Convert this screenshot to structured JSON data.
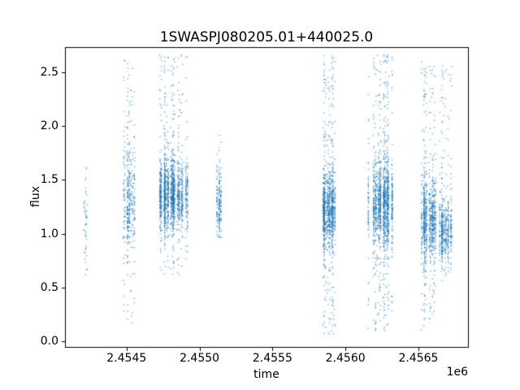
{
  "chart_data": {
    "type": "scatter",
    "title": "1SWASPJ080205.01+440025.0",
    "xlabel": "time",
    "ylabel": "flux",
    "x_offset_text": "1e6",
    "xlim": [
      2454078,
      2456840
    ],
    "ylim": [
      -0.05,
      2.73
    ],
    "xticks": [
      2454500,
      2455000,
      2455500,
      2456000,
      2456500
    ],
    "xtick_labels": [
      "2.4545",
      "2.4550",
      "2.4555",
      "2.4560",
      "2.4565"
    ],
    "yticks": [
      0.0,
      0.5,
      1.0,
      1.5,
      2.0,
      2.5
    ],
    "ytick_labels": [
      "0.0",
      "0.5",
      "1.0",
      "1.5",
      "2.0",
      "2.5"
    ],
    "grid": false,
    "legend": null,
    "marker_color": "#1f77b4",
    "marker_alpha": 0.6,
    "marker_size": 1.4,
    "colors": {
      "background": "#ffffff",
      "spine": "#000000",
      "text": "#000000"
    },
    "description": "Light-curve scatter: nightly vertical streaks of flux measurements grouped into observing seasons",
    "clusters": [
      {
        "t_center": 2454217,
        "t_halfwidth": 14,
        "nights": 5,
        "n_points": 50,
        "flux_mean": 1.15,
        "flux_sd": 0.26,
        "tail_frac": 0.1,
        "flux_min": 0.6,
        "flux_max": 1.66
      },
      {
        "t_center": 2454501,
        "t_halfwidth": 55,
        "nights": 12,
        "n_points": 430,
        "flux_mean": 1.32,
        "flux_sd": 0.24,
        "tail_frac": 0.2,
        "flux_min": 0.15,
        "flux_max": 2.62
      },
      {
        "t_center": 2454824,
        "t_halfwidth": 100,
        "nights": 26,
        "n_points": 1700,
        "flux_mean": 1.36,
        "flux_sd": 0.16,
        "tail_frac": 0.16,
        "flux_min": 0.62,
        "flux_max": 2.66
      },
      {
        "t_center": 2455136,
        "t_halfwidth": 16,
        "nights": 4,
        "n_points": 210,
        "flux_mean": 1.28,
        "flux_sd": 0.16,
        "tail_frac": 0.06,
        "flux_min": 0.95,
        "flux_max": 1.92
      },
      {
        "t_center": 2455882,
        "t_halfwidth": 48,
        "nights": 14,
        "n_points": 1100,
        "flux_mean": 1.22,
        "flux_sd": 0.18,
        "tail_frac": 0.24,
        "flux_min": 0.05,
        "flux_max": 2.66
      },
      {
        "t_center": 2456238,
        "t_halfwidth": 90,
        "nights": 24,
        "n_points": 1500,
        "flux_mean": 1.27,
        "flux_sd": 0.2,
        "tail_frac": 0.24,
        "flux_min": 0.1,
        "flux_max": 2.66
      },
      {
        "t_center": 2456567,
        "t_halfwidth": 58,
        "nights": 16,
        "n_points": 900,
        "flux_mean": 1.12,
        "flux_sd": 0.18,
        "tail_frac": 0.22,
        "flux_min": 0.1,
        "flux_max": 2.6
      },
      {
        "t_center": 2456689,
        "t_halfwidth": 45,
        "nights": 12,
        "n_points": 560,
        "flux_mean": 1.02,
        "flux_sd": 0.14,
        "tail_frac": 0.18,
        "flux_min": 0.55,
        "flux_max": 2.6
      }
    ]
  }
}
